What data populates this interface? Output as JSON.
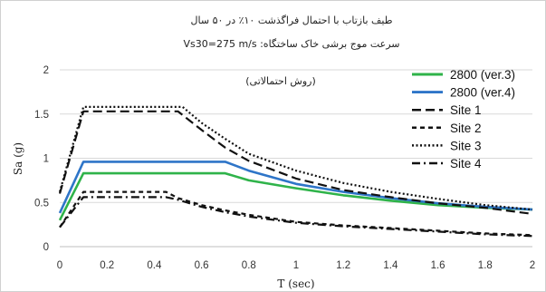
{
  "chart_data": {
    "type": "line",
    "title_lines": [
      "طیف بازتاب با احتمال فراگذشت ۱۰٪ در ۵۰ سال",
      "سرعت موج برشی خاک ساختگاه: Vs30=275 m/s",
      "(روش احتمالاتی)"
    ],
    "xlabel": "T (sec)",
    "ylabel": "Sa (g)",
    "xlim": [
      0,
      2
    ],
    "ylim": [
      0,
      2
    ],
    "x_ticks": [
      "0",
      "0.2",
      "0.4",
      "0.6",
      "0.8",
      "1",
      "1.2",
      "1.4",
      "1.6",
      "1.8",
      "2"
    ],
    "y_ticks": [
      "0",
      "0.5",
      "1",
      "1.5",
      "2"
    ],
    "grid": "horizontal",
    "legend_position": "top-right",
    "series": [
      {
        "name": "2800 (ver.3)",
        "color": "#2fb34a",
        "style": "solid",
        "x": [
          0,
          0.1,
          0.7,
          0.8,
          1.0,
          1.2,
          1.4,
          1.6,
          1.8,
          2.0
        ],
        "y": [
          0.3,
          0.83,
          0.83,
          0.75,
          0.66,
          0.58,
          0.52,
          0.47,
          0.44,
          0.42
        ]
      },
      {
        "name": "2800 (ver.4)",
        "color": "#2e75c8",
        "style": "solid",
        "x": [
          0,
          0.1,
          0.7,
          0.8,
          1.0,
          1.2,
          1.4,
          1.6,
          1.8,
          2.0
        ],
        "y": [
          0.38,
          0.96,
          0.96,
          0.86,
          0.71,
          0.62,
          0.55,
          0.49,
          0.45,
          0.42
        ]
      },
      {
        "name": "Site 1",
        "color": "#111111",
        "style": "dash",
        "x": [
          0,
          0.1,
          0.5,
          0.6,
          0.7,
          0.8,
          1.0,
          1.2,
          1.4,
          1.6,
          1.8,
          2.0
        ],
        "y": [
          0.6,
          1.53,
          1.53,
          1.32,
          1.12,
          0.97,
          0.77,
          0.64,
          0.56,
          0.49,
          0.44,
          0.37
        ]
      },
      {
        "name": "Site 2",
        "color": "#111111",
        "style": "shortdash",
        "x": [
          0,
          0.1,
          0.45,
          0.5,
          0.6,
          0.7,
          0.8,
          1.0,
          1.2,
          1.4,
          1.6,
          1.8,
          2.0
        ],
        "y": [
          0.22,
          0.62,
          0.62,
          0.55,
          0.47,
          0.41,
          0.36,
          0.28,
          0.24,
          0.21,
          0.18,
          0.15,
          0.13
        ]
      },
      {
        "name": "Site 3",
        "color": "#111111",
        "style": "dot",
        "x": [
          0,
          0.1,
          0.52,
          0.6,
          0.7,
          0.8,
          1.0,
          1.2,
          1.4,
          1.6,
          1.8,
          2.0
        ],
        "y": [
          0.62,
          1.58,
          1.58,
          1.4,
          1.22,
          1.05,
          0.86,
          0.72,
          0.62,
          0.54,
          0.47,
          0.42
        ]
      },
      {
        "name": "Site 4",
        "color": "#111111",
        "style": "dashdot",
        "x": [
          0,
          0.1,
          0.45,
          0.5,
          0.6,
          0.7,
          0.8,
          1.0,
          1.2,
          1.4,
          1.6,
          1.8,
          2.0
        ],
        "y": [
          0.22,
          0.56,
          0.56,
          0.53,
          0.45,
          0.39,
          0.34,
          0.27,
          0.23,
          0.2,
          0.17,
          0.14,
          0.12
        ]
      }
    ]
  }
}
